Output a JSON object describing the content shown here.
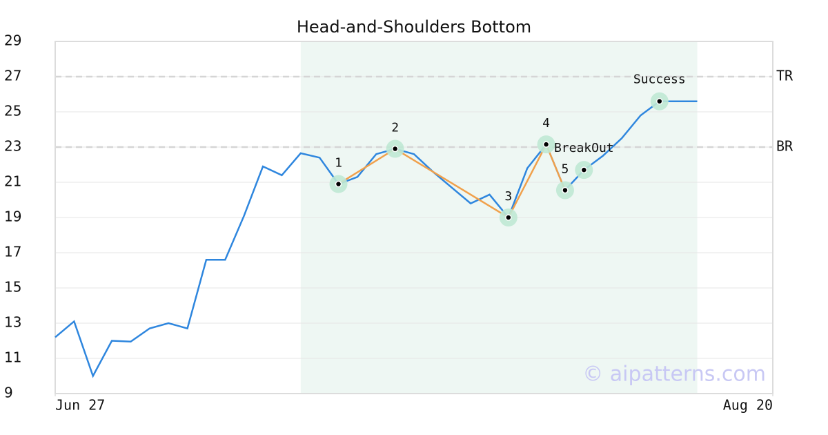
{
  "chart_data": {
    "type": "line",
    "title": "Head-and-Shoulders Bottom",
    "x": [
      0,
      1,
      2,
      3,
      4,
      5,
      6,
      7,
      8,
      9,
      10,
      11,
      12,
      13,
      14,
      15,
      16,
      17,
      18,
      19,
      20,
      21,
      22,
      23,
      24,
      25,
      26,
      27,
      28,
      29,
      30,
      31,
      32,
      33,
      34
    ],
    "series": [
      {
        "color": "#2e86de",
        "values": [
          12.2,
          13.1,
          10.0,
          12.0,
          11.95,
          12.7,
          13.0,
          12.7,
          16.6,
          16.6,
          19.1,
          21.9,
          21.4,
          22.65,
          22.4,
          20.9,
          21.3,
          22.6,
          22.9,
          22.6,
          21.6,
          20.7,
          19.8,
          20.3,
          19.0,
          21.8,
          23.15,
          20.55,
          21.7,
          22.5,
          23.5,
          24.8,
          25.6,
          25.6,
          25.6
        ]
      }
    ],
    "pattern": {
      "color": "#f0a04b",
      "x": [
        15,
        18,
        24,
        26,
        27
      ],
      "values": [
        20.9,
        22.9,
        19.0,
        23.15,
        20.55
      ],
      "labels": [
        "1",
        "2",
        "3",
        "4",
        "5"
      ]
    },
    "markers": [
      {
        "x": 28,
        "value": 21.7,
        "label": "BreakOut"
      },
      {
        "x": 32,
        "value": 25.6,
        "label": "Success"
      }
    ],
    "reference_lines": [
      {
        "value": 27,
        "label": "TR"
      },
      {
        "value": 23,
        "label": "BR"
      }
    ],
    "shade": [
      13,
      34
    ],
    "xlim": [
      0,
      38
    ],
    "xticks": [
      {
        "value": 0,
        "label": "Jun 27"
      },
      {
        "value": 38,
        "label": "Aug 20"
      }
    ],
    "ylim": [
      9,
      29
    ],
    "yticks": [
      9,
      11,
      13,
      15,
      17,
      19,
      21,
      23,
      25,
      27,
      29
    ],
    "grid": true,
    "watermark": "© aipatterns.com"
  }
}
